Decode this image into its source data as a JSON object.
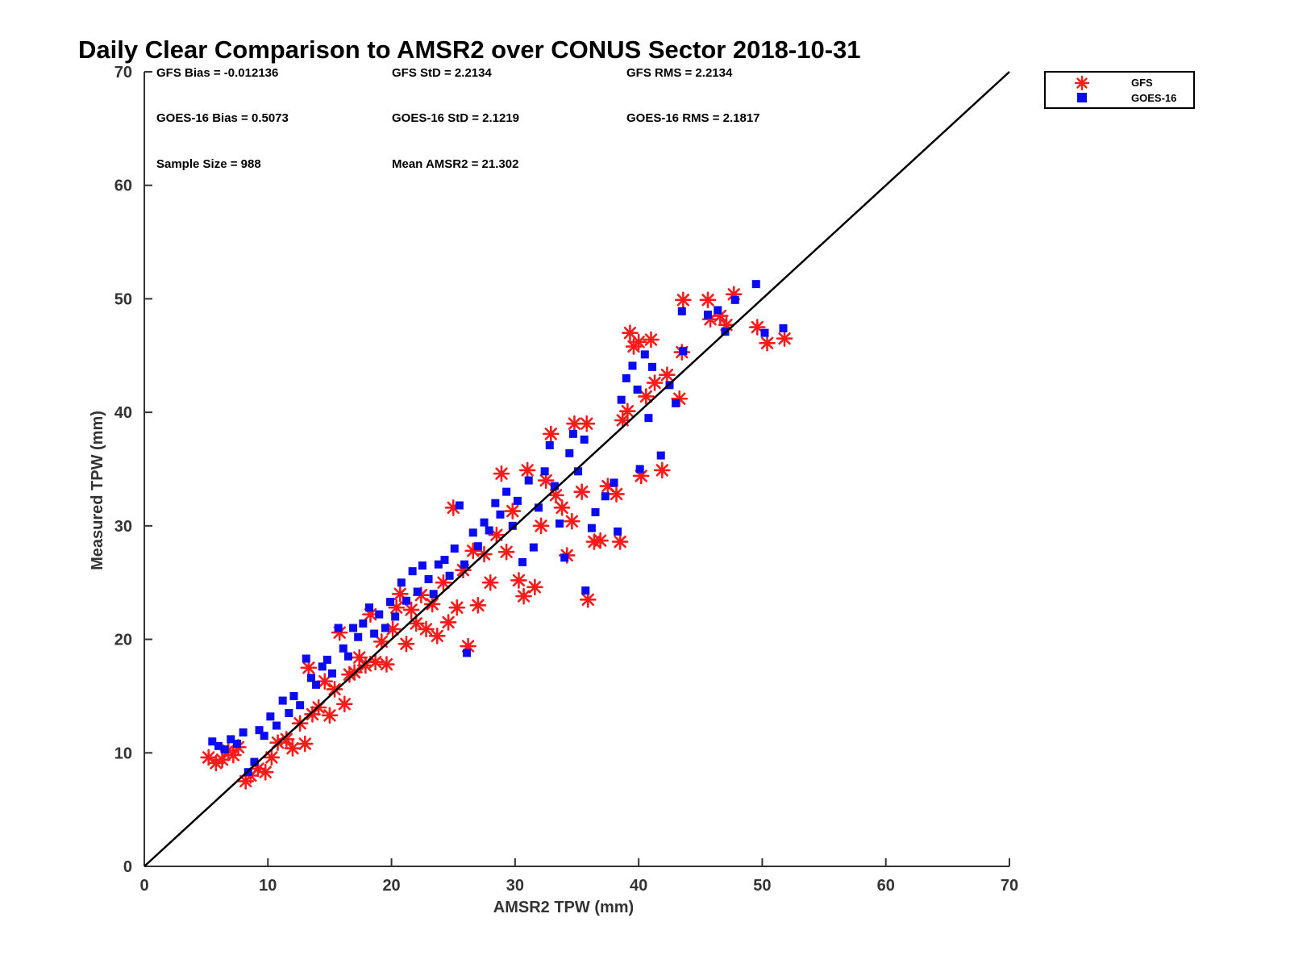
{
  "chart_data": {
    "type": "scatter",
    "title": "Daily Clear Comparison to AMSR2 over CONUS Sector 2018-10-31",
    "xlabel": "AMSR2 TPW (mm)",
    "ylabel": "Measured TPW (mm)",
    "xlim": [
      0,
      70
    ],
    "ylim": [
      0,
      70
    ],
    "xticks": [
      "0",
      "10",
      "20",
      "30",
      "40",
      "50",
      "60",
      "70"
    ],
    "yticks": [
      "0",
      "10",
      "20",
      "30",
      "40",
      "50",
      "60",
      "70"
    ],
    "xtick_values": [
      0,
      10,
      20,
      30,
      40,
      50,
      60,
      70
    ],
    "ytick_values": [
      0,
      10,
      20,
      30,
      40,
      50,
      60,
      70
    ],
    "grid": false,
    "legend_position": "top-right outside plot",
    "reference_line": {
      "name": "1:1 line",
      "x": [
        0,
        70
      ],
      "y": [
        0,
        70
      ],
      "color": "#000000"
    },
    "statistics": [
      [
        "GFS Bias = -0.012136",
        "GFS StD = 2.2134",
        "GFS RMS = 2.2134"
      ],
      [
        "GOES-16 Bias = 0.5073",
        "GOES-16 StD = 2.1219",
        "GOES-16 RMS = 2.1817"
      ],
      [
        "Sample Size = 988",
        "Mean AMSR2 = 21.302"
      ]
    ],
    "series": [
      {
        "name": "GFS",
        "marker": "asterisk",
        "color": "#ff1a1a",
        "points": [
          [
            5.2,
            9.6
          ],
          [
            5.8,
            9.1
          ],
          [
            6.3,
            9.4
          ],
          [
            6.8,
            10.2
          ],
          [
            7.2,
            9.8
          ],
          [
            7.6,
            10.5
          ],
          [
            8.2,
            7.5
          ],
          [
            8.6,
            8.0
          ],
          [
            9.2,
            8.6
          ],
          [
            9.8,
            8.3
          ],
          [
            10.3,
            9.6
          ],
          [
            10.8,
            10.9
          ],
          [
            11.5,
            11.2
          ],
          [
            12.0,
            10.4
          ],
          [
            12.6,
            12.6
          ],
          [
            13.0,
            10.8
          ],
          [
            13.3,
            17.5
          ],
          [
            13.6,
            13.4
          ],
          [
            14.1,
            14.0
          ],
          [
            14.6,
            16.3
          ],
          [
            15.0,
            13.3
          ],
          [
            15.4,
            15.6
          ],
          [
            15.8,
            20.6
          ],
          [
            16.2,
            14.3
          ],
          [
            16.6,
            16.9
          ],
          [
            17.0,
            17.1
          ],
          [
            17.4,
            18.4
          ],
          [
            17.9,
            17.7
          ],
          [
            18.3,
            22.2
          ],
          [
            18.7,
            18.0
          ],
          [
            19.2,
            19.8
          ],
          [
            19.6,
            17.8
          ],
          [
            20.1,
            20.9
          ],
          [
            20.4,
            22.8
          ],
          [
            20.7,
            24.0
          ],
          [
            21.2,
            19.6
          ],
          [
            21.6,
            22.6
          ],
          [
            22.0,
            21.4
          ],
          [
            22.4,
            23.9
          ],
          [
            22.8,
            20.9
          ],
          [
            23.3,
            23.1
          ],
          [
            23.7,
            20.3
          ],
          [
            24.2,
            25.0
          ],
          [
            24.6,
            21.5
          ],
          [
            25.0,
            31.6
          ],
          [
            25.3,
            22.8
          ],
          [
            25.8,
            26.1
          ],
          [
            26.2,
            19.4
          ],
          [
            26.6,
            27.8
          ],
          [
            27.0,
            23.0
          ],
          [
            27.5,
            27.5
          ],
          [
            28.0,
            25.0
          ],
          [
            28.5,
            29.2
          ],
          [
            28.9,
            34.6
          ],
          [
            29.3,
            27.7
          ],
          [
            29.8,
            31.3
          ],
          [
            30.3,
            25.2
          ],
          [
            30.7,
            23.8
          ],
          [
            31.0,
            34.9
          ],
          [
            31.6,
            24.6
          ],
          [
            32.1,
            30.0
          ],
          [
            32.5,
            34.0
          ],
          [
            32.9,
            38.1
          ],
          [
            33.3,
            32.7
          ],
          [
            33.8,
            31.6
          ],
          [
            34.2,
            27.4
          ],
          [
            34.6,
            30.4
          ],
          [
            34.8,
            39.0
          ],
          [
            35.4,
            33.0
          ],
          [
            35.8,
            39.0
          ],
          [
            35.9,
            23.5
          ],
          [
            36.4,
            28.6
          ],
          [
            36.9,
            28.7
          ],
          [
            37.5,
            33.5
          ],
          [
            38.2,
            32.8
          ],
          [
            38.5,
            28.6
          ],
          [
            38.7,
            39.3
          ],
          [
            39.1,
            40.1
          ],
          [
            39.3,
            47.0
          ],
          [
            39.6,
            45.8
          ],
          [
            40.0,
            46.2
          ],
          [
            40.2,
            34.4
          ],
          [
            40.6,
            41.4
          ],
          [
            41.0,
            46.4
          ],
          [
            41.3,
            42.6
          ],
          [
            41.9,
            34.9
          ],
          [
            42.3,
            43.3
          ],
          [
            43.3,
            41.2
          ],
          [
            43.5,
            45.3
          ],
          [
            43.6,
            49.9
          ],
          [
            45.6,
            49.9
          ],
          [
            45.8,
            48.2
          ],
          [
            46.6,
            48.5
          ],
          [
            47.1,
            47.7
          ],
          [
            47.7,
            50.4
          ],
          [
            49.6,
            47.5
          ],
          [
            50.4,
            46.1
          ],
          [
            51.8,
            46.5
          ]
        ]
      },
      {
        "name": "GOES-16",
        "marker": "square",
        "color": "#0a0af5",
        "points": [
          [
            5.5,
            11.0
          ],
          [
            6.0,
            10.6
          ],
          [
            6.5,
            10.3
          ],
          [
            7.0,
            11.2
          ],
          [
            7.5,
            10.8
          ],
          [
            8.0,
            11.8
          ],
          [
            8.4,
            8.3
          ],
          [
            8.9,
            9.2
          ],
          [
            9.3,
            12.0
          ],
          [
            9.7,
            11.5
          ],
          [
            10.2,
            13.2
          ],
          [
            10.7,
            12.4
          ],
          [
            11.2,
            14.6
          ],
          [
            11.7,
            13.5
          ],
          [
            12.1,
            15.0
          ],
          [
            12.6,
            14.2
          ],
          [
            13.1,
            18.3
          ],
          [
            13.5,
            16.6
          ],
          [
            13.9,
            16.0
          ],
          [
            14.4,
            17.6
          ],
          [
            14.8,
            18.2
          ],
          [
            15.2,
            17.0
          ],
          [
            15.7,
            21.0
          ],
          [
            16.1,
            19.2
          ],
          [
            16.5,
            18.5
          ],
          [
            16.9,
            21.0
          ],
          [
            17.3,
            20.2
          ],
          [
            17.7,
            21.4
          ],
          [
            18.2,
            22.8
          ],
          [
            18.6,
            20.5
          ],
          [
            19.0,
            22.2
          ],
          [
            19.5,
            21.0
          ],
          [
            19.9,
            23.3
          ],
          [
            20.3,
            22.0
          ],
          [
            20.8,
            25.0
          ],
          [
            21.2,
            23.4
          ],
          [
            21.7,
            26.0
          ],
          [
            22.1,
            24.2
          ],
          [
            22.5,
            26.5
          ],
          [
            23.0,
            25.3
          ],
          [
            23.4,
            24.0
          ],
          [
            23.8,
            26.6
          ],
          [
            24.3,
            27.0
          ],
          [
            24.7,
            25.6
          ],
          [
            25.1,
            28.0
          ],
          [
            25.5,
            31.8
          ],
          [
            25.9,
            26.6
          ],
          [
            26.1,
            18.8
          ],
          [
            26.6,
            29.4
          ],
          [
            27.0,
            28.2
          ],
          [
            27.5,
            30.3
          ],
          [
            27.9,
            29.6
          ],
          [
            28.4,
            32.0
          ],
          [
            28.8,
            31.0
          ],
          [
            29.3,
            33.0
          ],
          [
            29.8,
            30.0
          ],
          [
            30.2,
            32.2
          ],
          [
            30.6,
            26.8
          ],
          [
            31.1,
            34.0
          ],
          [
            31.5,
            28.1
          ],
          [
            31.9,
            31.6
          ],
          [
            32.4,
            34.8
          ],
          [
            32.8,
            37.1
          ],
          [
            33.2,
            33.5
          ],
          [
            33.6,
            30.2
          ],
          [
            34.0,
            27.2
          ],
          [
            34.4,
            36.4
          ],
          [
            34.7,
            38.1
          ],
          [
            35.1,
            34.8
          ],
          [
            35.6,
            37.6
          ],
          [
            35.7,
            24.3
          ],
          [
            36.2,
            29.8
          ],
          [
            36.5,
            31.2
          ],
          [
            37.3,
            32.6
          ],
          [
            38.0,
            33.8
          ],
          [
            38.3,
            29.5
          ],
          [
            38.6,
            41.1
          ],
          [
            39.0,
            43.0
          ],
          [
            39.5,
            44.1
          ],
          [
            39.9,
            42.0
          ],
          [
            40.1,
            35.0
          ],
          [
            40.5,
            45.1
          ],
          [
            40.8,
            39.5
          ],
          [
            41.1,
            44.0
          ],
          [
            41.8,
            36.2
          ],
          [
            42.5,
            42.4
          ],
          [
            43.0,
            40.8
          ],
          [
            43.5,
            48.9
          ],
          [
            43.6,
            45.4
          ],
          [
            45.6,
            48.6
          ],
          [
            46.4,
            49.0
          ],
          [
            47.0,
            47.1
          ],
          [
            47.8,
            49.9
          ],
          [
            49.5,
            51.3
          ],
          [
            50.2,
            47.0
          ],
          [
            51.7,
            47.4
          ]
        ]
      }
    ]
  }
}
